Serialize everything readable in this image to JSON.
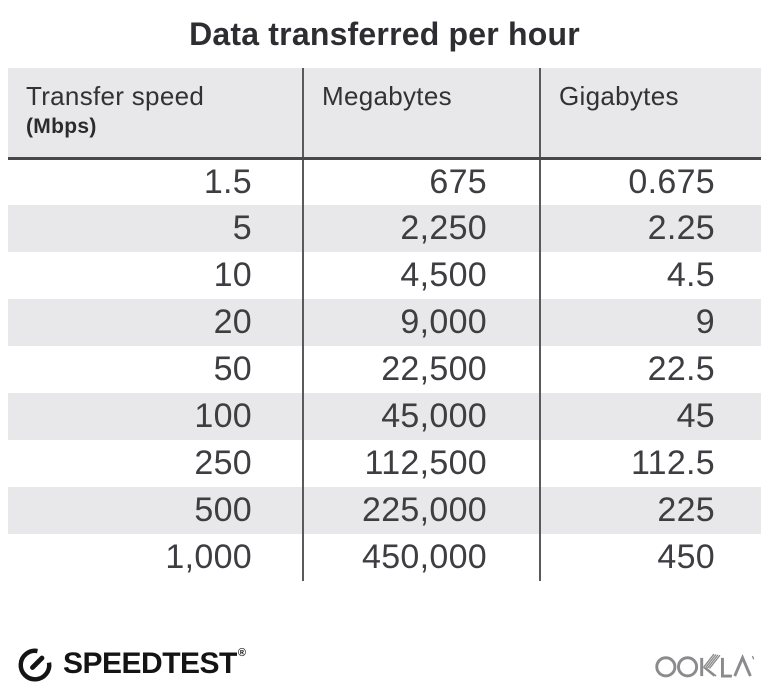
{
  "chart_data": {
    "type": "table",
    "title": "Data transferred per hour",
    "columns": [
      {
        "label": "Transfer speed",
        "unit": "(Mbps)"
      },
      {
        "label": "Megabytes",
        "unit": ""
      },
      {
        "label": "Gigabytes",
        "unit": ""
      }
    ],
    "rows": [
      [
        "1.5",
        "675",
        "0.675"
      ],
      [
        "5",
        "2,250",
        "2.25"
      ],
      [
        "10",
        "4,500",
        "4.5"
      ],
      [
        "20",
        "9,000",
        "9"
      ],
      [
        "50",
        "22,500",
        "22.5"
      ],
      [
        "100",
        "45,000",
        "45"
      ],
      [
        "250",
        "112,500",
        "112.5"
      ],
      [
        "500",
        "225,000",
        "225"
      ],
      [
        "1,000",
        "450,000",
        "450"
      ]
    ],
    "layout": {
      "stripe_rows": "even rows shaded",
      "column_alignment": [
        "right",
        "right",
        "right"
      ],
      "grid": "vertical dividers between columns, heavy rule under header"
    }
  },
  "footer": {
    "speedtest_label": "SPEEDTEST",
    "speedtest_trademark": "®",
    "ookla_label": "OOKLA"
  },
  "colors": {
    "background": "#ffffff",
    "header_bg": "#e8e8eb",
    "stripe_bg": "#e8e8eb",
    "divider": "#5a5a5d",
    "header_rule": "#48484b",
    "body_text": "#3e3e42",
    "title_text": "#2e2e32",
    "speedtest_black": "#141414",
    "ookla_gray": "#8b8b8d"
  }
}
